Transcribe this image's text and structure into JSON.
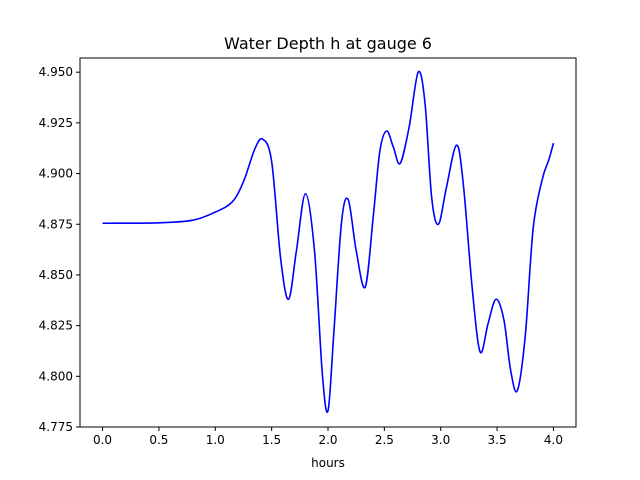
{
  "chart_data": {
    "type": "line",
    "title": "Water Depth h at gauge 6",
    "xlabel": "hours",
    "ylabel": "",
    "xlim": [
      -0.2,
      4.2
    ],
    "ylim": [
      4.775,
      4.957
    ],
    "xticks": [
      0.0,
      0.5,
      1.0,
      1.5,
      2.0,
      2.5,
      3.0,
      3.5,
      4.0
    ],
    "xtick_labels": [
      "0.0",
      "0.5",
      "1.0",
      "1.5",
      "2.0",
      "2.5",
      "3.0",
      "3.5",
      "4.0"
    ],
    "yticks": [
      4.775,
      4.8,
      4.825,
      4.85,
      4.875,
      4.9,
      4.925,
      4.95
    ],
    "ytick_labels": [
      "4.775",
      "4.800",
      "4.825",
      "4.850",
      "4.875",
      "4.900",
      "4.925",
      "4.950"
    ],
    "grid": false,
    "series": [
      {
        "color": "#0000ff",
        "x": [
          0.0,
          0.5,
          0.8,
          1.0,
          1.15,
          1.25,
          1.35,
          1.42,
          1.5,
          1.58,
          1.65,
          1.72,
          1.8,
          1.88,
          1.95,
          2.0,
          2.05,
          2.12,
          2.18,
          2.25,
          2.33,
          2.4,
          2.46,
          2.52,
          2.58,
          2.64,
          2.72,
          2.8,
          2.86,
          2.92,
          2.98,
          3.05,
          3.14,
          3.2,
          3.28,
          3.35,
          3.42,
          3.49,
          3.56,
          3.62,
          3.68,
          3.75,
          3.82,
          3.9,
          3.96,
          4.0
        ],
        "y": [
          4.8755,
          4.8757,
          4.877,
          4.881,
          4.886,
          4.896,
          4.912,
          4.917,
          4.906,
          4.858,
          4.838,
          4.862,
          4.89,
          4.862,
          4.801,
          4.783,
          4.82,
          4.876,
          4.887,
          4.862,
          4.844,
          4.878,
          4.911,
          4.921,
          4.913,
          4.905,
          4.923,
          4.95,
          4.935,
          4.888,
          4.875,
          4.893,
          4.914,
          4.895,
          4.843,
          4.812,
          4.826,
          4.838,
          4.828,
          4.803,
          4.793,
          4.82,
          4.873,
          4.897,
          4.907,
          4.915
        ]
      }
    ]
  }
}
